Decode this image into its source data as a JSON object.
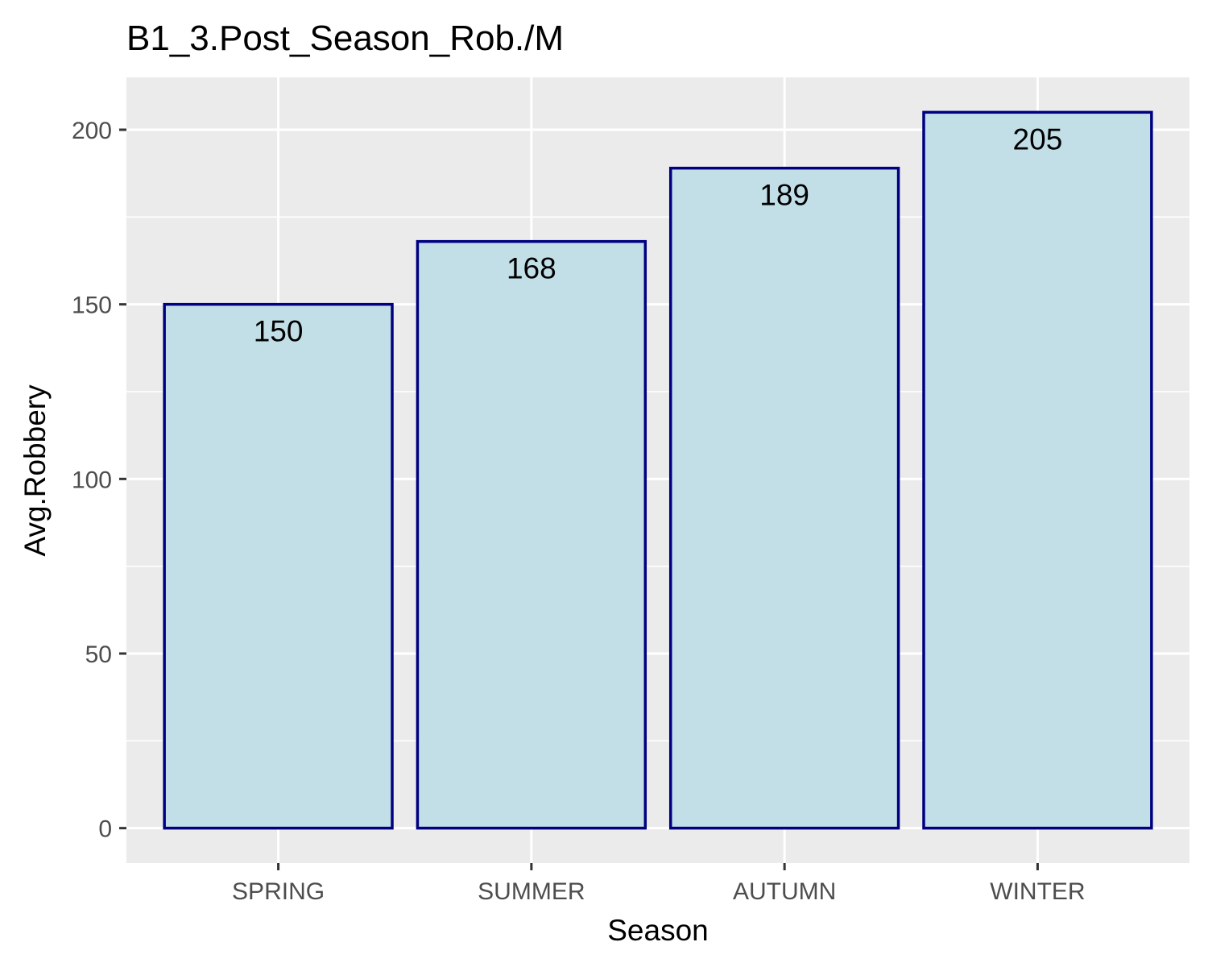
{
  "chart_data": {
    "type": "bar",
    "title": "B1_3.Post_Season_Rob./M",
    "xlabel": "Season",
    "ylabel": "Avg.Robbery",
    "categories": [
      "SPRING",
      "SUMMER",
      "AUTUMN",
      "WINTER"
    ],
    "values": [
      150,
      168,
      189,
      205
    ],
    "data_labels": [
      "150",
      "168",
      "189",
      "205"
    ],
    "ylim": [
      -10,
      215
    ],
    "yticks": [
      0,
      50,
      100,
      150,
      200
    ],
    "ytick_labels": [
      "0",
      "50",
      "100",
      "150",
      "200"
    ],
    "grid": true,
    "legend": "none",
    "colors": {
      "panel_background": "#EBEBEB",
      "grid_major": "#FFFFFF",
      "bar_fill": "#C2DFE8",
      "bar_outline": "#000080",
      "tick_mark": "#333333"
    }
  }
}
